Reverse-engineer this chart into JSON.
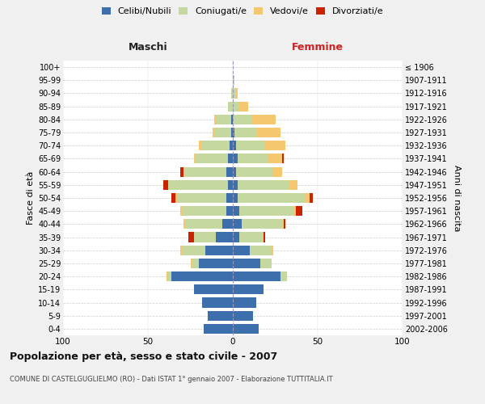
{
  "age_groups": [
    "0-4",
    "5-9",
    "10-14",
    "15-19",
    "20-24",
    "25-29",
    "30-34",
    "35-39",
    "40-44",
    "45-49",
    "50-54",
    "55-59",
    "60-64",
    "65-69",
    "70-74",
    "75-79",
    "80-84",
    "85-89",
    "90-94",
    "95-99",
    "100+"
  ],
  "birth_years": [
    "2002-2006",
    "1997-2001",
    "1992-1996",
    "1987-1991",
    "1982-1986",
    "1977-1981",
    "1972-1976",
    "1967-1971",
    "1962-1966",
    "1957-1961",
    "1952-1956",
    "1947-1951",
    "1942-1946",
    "1937-1941",
    "1932-1936",
    "1927-1931",
    "1922-1926",
    "1917-1921",
    "1912-1916",
    "1907-1911",
    "≤ 1906"
  ],
  "male": {
    "celibi": [
      17,
      15,
      18,
      23,
      36,
      20,
      16,
      10,
      6,
      4,
      4,
      3,
      4,
      3,
      2,
      1,
      1,
      0,
      0,
      0,
      0
    ],
    "coniugati": [
      0,
      0,
      0,
      0,
      2,
      4,
      14,
      13,
      22,
      26,
      29,
      35,
      25,
      19,
      16,
      10,
      9,
      3,
      1,
      0,
      0
    ],
    "vedovi": [
      0,
      0,
      0,
      0,
      1,
      1,
      1,
      0,
      1,
      1,
      1,
      0,
      0,
      1,
      2,
      1,
      1,
      0,
      0,
      0,
      0
    ],
    "divorziati": [
      0,
      0,
      0,
      0,
      0,
      0,
      0,
      3,
      0,
      0,
      2,
      3,
      2,
      0,
      0,
      0,
      0,
      0,
      0,
      0,
      0
    ]
  },
  "female": {
    "nubili": [
      15,
      12,
      14,
      18,
      28,
      16,
      10,
      4,
      5,
      4,
      3,
      3,
      2,
      3,
      2,
      1,
      0,
      0,
      0,
      0,
      0
    ],
    "coniugate": [
      0,
      0,
      0,
      0,
      4,
      7,
      13,
      14,
      24,
      32,
      40,
      30,
      22,
      18,
      17,
      13,
      11,
      4,
      2,
      1,
      0
    ],
    "vedove": [
      0,
      0,
      0,
      0,
      0,
      0,
      1,
      0,
      1,
      1,
      2,
      5,
      5,
      8,
      12,
      14,
      14,
      5,
      1,
      0,
      0
    ],
    "divorziate": [
      0,
      0,
      0,
      0,
      0,
      0,
      0,
      1,
      1,
      4,
      2,
      0,
      0,
      1,
      0,
      0,
      0,
      0,
      0,
      0,
      0
    ]
  },
  "colors": {
    "celibi": "#3d6fad",
    "coniugati": "#c5d8a0",
    "vedovi": "#f5c76e",
    "divorziati": "#cc2200"
  },
  "title": "Popolazione per età, sesso e stato civile - 2007",
  "subtitle": "COMUNE DI CASTELGUGLIELMO (RO) - Dati ISTAT 1° gennaio 2007 - Elaborazione TUTTITALIA.IT",
  "ylabel_left": "Fasce di età",
  "ylabel_right": "Anni di nascita",
  "xlabel_left": "Maschi",
  "xlabel_right": "Femmine",
  "xlim": 100,
  "background_color": "#f0f0f0",
  "plot_bg_color": "#ffffff"
}
